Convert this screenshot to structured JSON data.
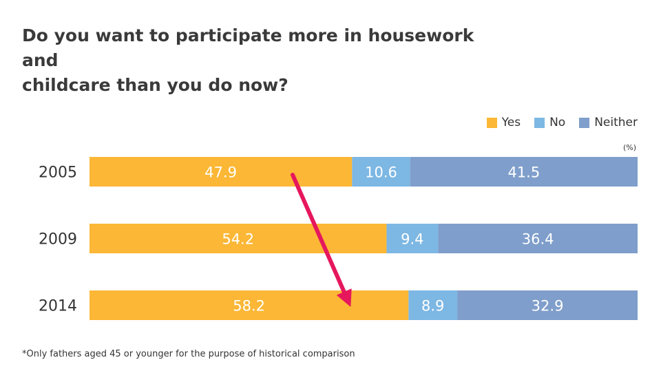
{
  "title_line1": "Do you want to participate more in housework and",
  "title_line2": "childcare than you do now?",
  "unit": "(%)",
  "footnote": "*Only fathers aged 45 or younger for the purpose of historical comparison",
  "colors": {
    "yes": "#FBB735",
    "no": "#7DB7E3",
    "neither": "#7F9ECB",
    "arrow": "#E6175C",
    "label": "#ffffff",
    "category": "#333333"
  },
  "chart_data": {
    "type": "bar",
    "orientation": "horizontal",
    "stacked": true,
    "categories": [
      "2005",
      "2009",
      "2014"
    ],
    "series": [
      {
        "name": "Yes",
        "values": [
          47.9,
          54.2,
          58.2
        ]
      },
      {
        "name": "No",
        "values": [
          10.6,
          9.4,
          8.9
        ]
      },
      {
        "name": "Neither",
        "values": [
          41.5,
          36.4,
          32.9
        ]
      }
    ],
    "xlim": [
      0,
      100
    ],
    "legend_position": "top-right",
    "annotation": "arrow indicating increase in Yes from 2005 to 2014"
  }
}
